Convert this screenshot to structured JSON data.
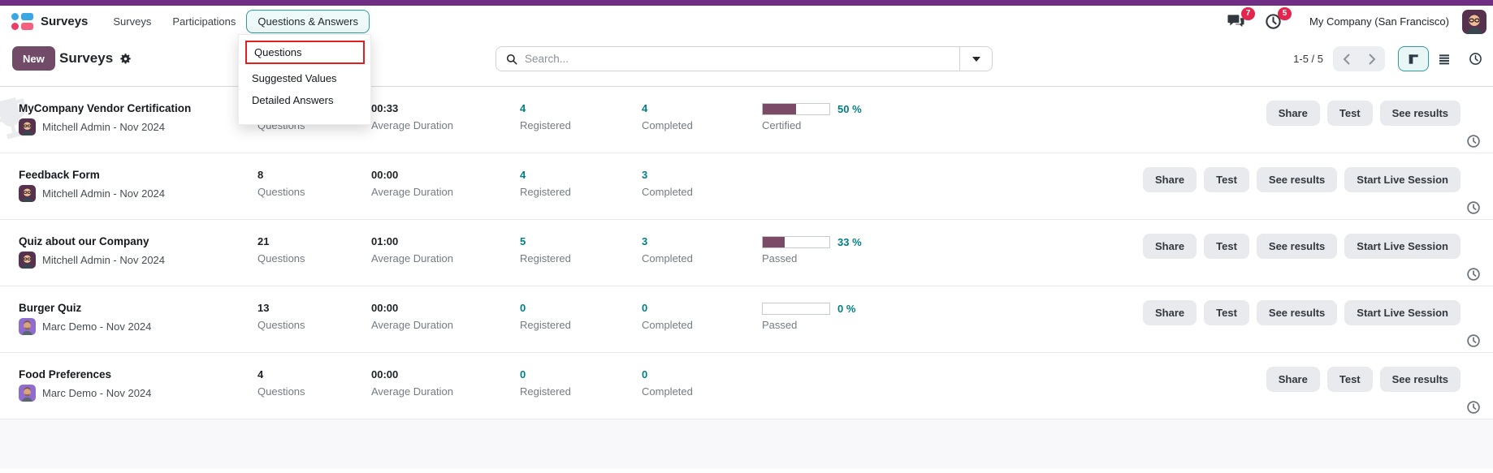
{
  "colors": {
    "accent_teal": "#017e84",
    "primary_purple": "#714B67",
    "progress_fill": "#7a4a67",
    "badge_red": "#e4264f",
    "tour_red": "#e0201e",
    "window_strip": "#702f84"
  },
  "navbar": {
    "brand": "Surveys",
    "menus": [
      {
        "label": "Surveys"
      },
      {
        "label": "Participations"
      },
      {
        "label": "Questions & Answers",
        "highlighted": true
      }
    ],
    "systray": {
      "messages_count": "7",
      "activities_count": "5",
      "company": "My Company (San Francisco)"
    }
  },
  "dropdown_menu": {
    "items": [
      {
        "label": "Questions",
        "tour_highlighted": true
      },
      {
        "label": "Suggested Values"
      },
      {
        "label": "Detailed Answers"
      }
    ]
  },
  "control_panel": {
    "new_label": "New",
    "title": "Surveys",
    "search_placeholder": "Search...",
    "pager": "1-5 / 5"
  },
  "stat_labels": {
    "questions": "Questions",
    "duration": "Average Duration",
    "registered": "Registered",
    "completed": "Completed"
  },
  "surveys": [
    {
      "title": "MyCompany Vendor Certification",
      "owner": "Mitchell Admin - Nov 2024",
      "avatar": "mitchell",
      "ghost_icon": "certification-trophy",
      "questions": "",
      "duration": "00:33",
      "registered": "4",
      "completed": "4",
      "progress": {
        "percent": 50,
        "text": "50 %",
        "label": "Certified"
      },
      "buttons": [
        "Share",
        "Test",
        "See results"
      ]
    },
    {
      "title": "Feedback Form",
      "owner": "Mitchell Admin - Nov 2024",
      "avatar": "mitchell",
      "questions": "8",
      "duration": "00:00",
      "registered": "4",
      "completed": "3",
      "progress": null,
      "buttons": [
        "Share",
        "Test",
        "See results",
        "Start Live Session"
      ]
    },
    {
      "title": "Quiz about our Company",
      "owner": "Mitchell Admin - Nov 2024",
      "avatar": "mitchell",
      "questions": "21",
      "duration": "01:00",
      "registered": "5",
      "completed": "3",
      "progress": {
        "percent": 33,
        "text": "33 %",
        "label": "Passed"
      },
      "buttons": [
        "Share",
        "Test",
        "See results",
        "Start Live Session"
      ]
    },
    {
      "title": "Burger Quiz",
      "owner": "Marc Demo - Nov 2024",
      "avatar": "marc",
      "questions": "13",
      "duration": "00:00",
      "registered": "0",
      "completed": "0",
      "progress": {
        "percent": 0,
        "text": "0 %",
        "label": "Passed"
      },
      "buttons": [
        "Share",
        "Test",
        "See results",
        "Start Live Session"
      ]
    },
    {
      "title": "Food Preferences",
      "owner": "Marc Demo - Nov 2024",
      "avatar": "marc",
      "questions": "4",
      "duration": "00:00",
      "registered": "0",
      "completed": "0",
      "progress": null,
      "buttons": [
        "Share",
        "Test",
        "See results"
      ]
    }
  ]
}
